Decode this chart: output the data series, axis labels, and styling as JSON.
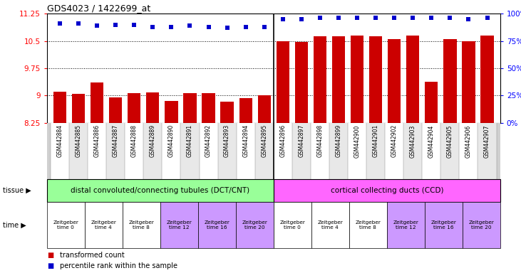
{
  "title": "GDS4023 / 1422699_at",
  "samples": [
    "GSM442884",
    "GSM442885",
    "GSM442886",
    "GSM442887",
    "GSM442888",
    "GSM442889",
    "GSM442890",
    "GSM442891",
    "GSM442892",
    "GSM442893",
    "GSM442894",
    "GSM442895",
    "GSM442896",
    "GSM442897",
    "GSM442898",
    "GSM442899",
    "GSM442900",
    "GSM442901",
    "GSM442902",
    "GSM442903",
    "GSM442904",
    "GSM442905",
    "GSM442906",
    "GSM442907"
  ],
  "bar_values": [
    9.1,
    9.05,
    9.35,
    8.95,
    9.06,
    9.08,
    8.85,
    9.07,
    9.07,
    8.83,
    8.92,
    9.01,
    10.5,
    10.48,
    10.62,
    10.62,
    10.65,
    10.62,
    10.55,
    10.65,
    9.38,
    10.55,
    10.5,
    10.65
  ],
  "percentile_values": [
    91,
    91,
    89,
    90,
    90,
    88,
    88,
    89,
    88,
    87,
    88,
    88,
    95,
    95,
    96,
    96,
    96,
    96,
    96,
    96,
    96,
    96,
    95,
    96
  ],
  "bar_color": "#cc0000",
  "percentile_color": "#0000cc",
  "ylim": [
    8.25,
    11.25
  ],
  "yticks": [
    8.25,
    9.0,
    9.75,
    10.5,
    11.25
  ],
  "ytick_labels": [
    "8.25",
    "9",
    "9.75",
    "10.5",
    "11.25"
  ],
  "y2ticks": [
    0,
    25,
    50,
    75,
    100
  ],
  "y2tick_labels": [
    "0%",
    "25%",
    "50%",
    "75%",
    "100%"
  ],
  "hlines": [
    9.0,
    9.75,
    10.5
  ],
  "tissue_group1_label": "distal convoluted/connecting tubules (DCT/CNT)",
  "tissue_group2_label": "cortical collecting ducts (CCD)",
  "tissue_group1_color": "#99ff99",
  "tissue_group2_color": "#ff66ff",
  "time_labels": [
    "Zeitgeber\ntime 0",
    "Zeitgeber\ntime 4",
    "Zeitgeber\ntime 8",
    "Zeitgeber\ntime 12",
    "Zeitgeber\ntime 16",
    "Zeitgeber\ntime 20"
  ],
  "time_colors": [
    "#ffffff",
    "#ffffff",
    "#ffffff",
    "#cc99ff",
    "#cc99ff",
    "#cc99ff"
  ],
  "legend_bar_label": "transformed count",
  "legend_pct_label": "percentile rank within the sample",
  "n_group1": 12,
  "n_group2": 12,
  "n_time": 6,
  "xlabels_bg": "#d0d0d0",
  "chart_bg": "#ffffff"
}
